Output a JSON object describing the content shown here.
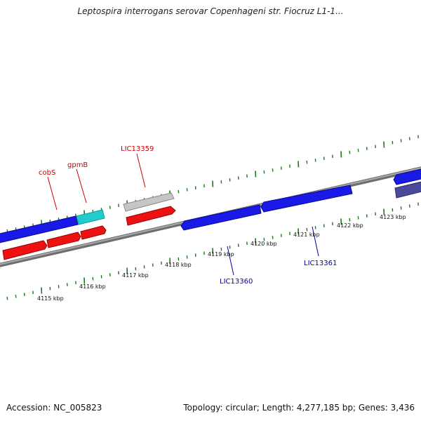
{
  "title": "Leptospira interrogans serovar Copenhageni str. Fiocruz L1-1...",
  "footer": {
    "accession": "Accession: NC_005823",
    "summary": "Topology: circular; Length: 4,277,185 bp; Genes: 3,436"
  },
  "colors": {
    "forward_gene": "#1a1ae6",
    "reverse_gene": "#ee1111",
    "highlight_gene": "#22cccc",
    "grey_gene": "#b8b8b8",
    "dark_gene": "#4a4a9a",
    "backbone": "#8a8a8a",
    "tick": "#1a7a1a",
    "top_label": "#cc0000",
    "bottom_label": "#0000aa"
  },
  "scale_labels": [
    "4115 kbp",
    "4116 kbp",
    "4117 kbp",
    "4118 kbp",
    "4119 kbp",
    "4120 kbp",
    "4121 kbp",
    "4122 kbp",
    "4123 kbp"
  ],
  "gene_labels_top": [
    "cobS",
    "gpmB",
    "LIC13359"
  ],
  "gene_labels_bottom": [
    "LIC13360",
    "LIC13361"
  ]
}
